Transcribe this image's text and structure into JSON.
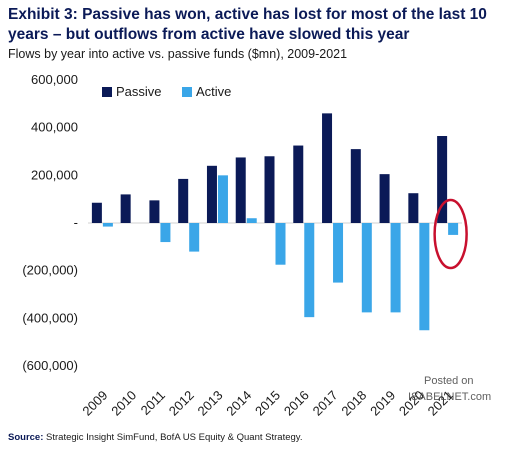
{
  "header": {
    "title": "Exhibit 3: Passive has won, active has lost for most of the last 10 years – but outflows from active have slowed this year",
    "subtitle": "Flows by year into active vs. passive funds ($mn), 2009-2021"
  },
  "footer": {
    "source_label": "Source:",
    "source_text": "Strategic Insight SimFund, BofA US Equity & Quant Strategy."
  },
  "watermark": {
    "line1": "Posted on",
    "line2": "ISABELNET.com"
  },
  "colors": {
    "passive": "#0b1a57",
    "active": "#3aa6e8",
    "highlight": "#c8102e"
  },
  "chart_data": {
    "type": "bar",
    "categories": [
      "2009",
      "2010",
      "2011",
      "2012",
      "2013",
      "2014",
      "2015",
      "2016",
      "2017",
      "2018",
      "2019",
      "2020",
      "2021"
    ],
    "series": [
      {
        "name": "Passive",
        "values": [
          85000,
          120000,
          95000,
          185000,
          240000,
          275000,
          280000,
          325000,
          460000,
          310000,
          205000,
          125000,
          365000
        ]
      },
      {
        "name": "Active",
        "values": [
          -15000,
          0,
          -80000,
          -120000,
          200000,
          20000,
          -175000,
          -395000,
          -250000,
          -375000,
          -375000,
          -450000,
          -50000
        ]
      }
    ],
    "ylim": [
      -600000,
      600000
    ],
    "yticks": [
      600000,
      400000,
      200000,
      0,
      -200000,
      -400000,
      -600000
    ],
    "ytick_labels": [
      "600,000",
      "400,000",
      "200,000",
      "-",
      "(200,000)",
      "(400,000)",
      "(600,000)"
    ],
    "legend_position": "top-left",
    "grid": false,
    "annotation": "red ellipse around 2021 bars"
  }
}
